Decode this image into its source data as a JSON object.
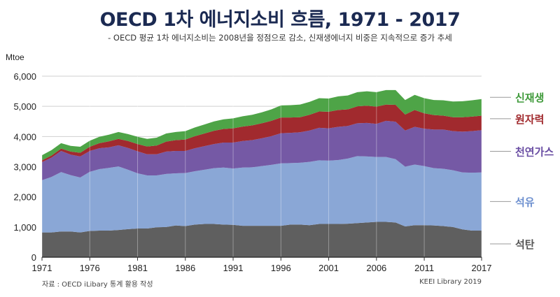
{
  "title": "OECD 1차 에너지소비 흐름, 1971 - 2017",
  "subtitle": "- OECD 평균 1차 에너지소비는 2008년을 정점으로 감소, 신재생에너지 비중은 지속적으로 증가 추세",
  "source": "자료 : OECD iLibary 통계 활용 작성",
  "credit": "KEEI Library 2019",
  "chart_data": {
    "type": "area",
    "stacked": true,
    "title": "OECD 1차 에너지소비 흐름, 1971 - 2017",
    "ylabel": "Mtoe",
    "xlabel": "",
    "ylim": [
      0,
      6000
    ],
    "xlim": [
      1971,
      2017
    ],
    "grid": true,
    "yticks": [
      "0",
      "1,000",
      "2,000",
      "3,000",
      "4,000",
      "5,000",
      "6,000"
    ],
    "xticks": [
      "1971",
      "1976",
      "1981",
      "1986",
      "1991",
      "1996",
      "2001",
      "2006",
      "2011",
      "2017"
    ],
    "legend_position": "right",
    "x": [
      1971,
      1972,
      1973,
      1974,
      1975,
      1976,
      1977,
      1978,
      1979,
      1980,
      1981,
      1982,
      1983,
      1984,
      1985,
      1986,
      1987,
      1988,
      1989,
      1990,
      1991,
      1992,
      1993,
      1994,
      1995,
      1996,
      1997,
      1998,
      1999,
      2000,
      2001,
      2002,
      2003,
      2004,
      2005,
      2006,
      2007,
      2008,
      2009,
      2010,
      2011,
      2012,
      2013,
      2014,
      2015,
      2016,
      2017
    ],
    "series": [
      {
        "name": "석탄",
        "color": "#5f5f5f",
        "values": [
          820,
          820,
          850,
          850,
          820,
          870,
          880,
          880,
          900,
          930,
          950,
          950,
          990,
          1000,
          1050,
          1030,
          1080,
          1100,
          1100,
          1080,
          1070,
          1040,
          1040,
          1040,
          1040,
          1040,
          1080,
          1080,
          1060,
          1100,
          1100,
          1100,
          1110,
          1130,
          1150,
          1170,
          1170,
          1150,
          1020,
          1060,
          1060,
          1050,
          1030,
          1000,
          920,
          880,
          880
        ]
      },
      {
        "name": "석유",
        "color": "#8aa7d6",
        "values": [
          1730,
          1840,
          1970,
          1870,
          1820,
          1960,
          2040,
          2080,
          2110,
          1970,
          1830,
          1760,
          1720,
          1760,
          1730,
          1760,
          1770,
          1800,
          1850,
          1890,
          1870,
          1930,
          1940,
          1980,
          2020,
          2070,
          2040,
          2050,
          2100,
          2110,
          2100,
          2120,
          2160,
          2220,
          2190,
          2150,
          2150,
          2100,
          1980,
          2010,
          1960,
          1900,
          1900,
          1880,
          1890,
          1920,
          1930
        ]
      },
      {
        "name": "천연가스",
        "color": "#7559a5",
        "values": [
          600,
          640,
          700,
          680,
          700,
          690,
          690,
          680,
          700,
          720,
          730,
          700,
          700,
          740,
          740,
          730,
          760,
          780,
          800,
          830,
          860,
          880,
          900,
          920,
          950,
          1000,
          1000,
          1010,
          1040,
          1080,
          1070,
          1100,
          1080,
          1090,
          1110,
          1100,
          1200,
          1240,
          1200,
          1250,
          1240,
          1280,
          1300,
          1300,
          1350,
          1380,
          1400
        ]
      },
      {
        "name": "원자력",
        "color": "#a12a2e",
        "values": [
          60,
          70,
          80,
          100,
          120,
          140,
          170,
          200,
          210,
          230,
          240,
          260,
          290,
          330,
          360,
          380,
          400,
          420,
          440,
          450,
          470,
          480,
          490,
          500,
          510,
          520,
          510,
          500,
          520,
          540,
          550,
          560,
          550,
          560,
          570,
          570,
          540,
          560,
          530,
          560,
          510,
          480,
          460,
          460,
          480,
          480,
          480
        ]
      },
      {
        "name": "신재생",
        "color": "#4ea447",
        "values": [
          170,
          180,
          180,
          190,
          200,
          200,
          210,
          220,
          230,
          230,
          240,
          250,
          260,
          270,
          270,
          280,
          290,
          300,
          310,
          320,
          330,
          340,
          350,
          360,
          380,
          400,
          410,
          420,
          430,
          440,
          440,
          450,
          460,
          470,
          480,
          480,
          480,
          490,
          480,
          500,
          500,
          500,
          510,
          520,
          530,
          540,
          550
        ]
      }
    ]
  }
}
